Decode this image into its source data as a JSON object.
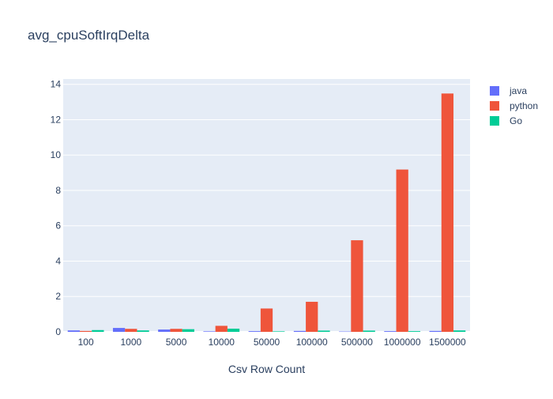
{
  "chart_data": {
    "type": "bar",
    "title": "avg_cpuSoftIrqDelta",
    "xlabel": "Csv Row Count",
    "ylabel": "",
    "categories": [
      "100",
      "1000",
      "5000",
      "10000",
      "50000",
      "100000",
      "500000",
      "1000000",
      "1500000"
    ],
    "series": [
      {
        "name": "java",
        "color": "#636efa",
        "values": [
          0.08,
          0.22,
          0.13,
          0.03,
          0.04,
          0.05,
          0.02,
          0.04,
          0.05
        ]
      },
      {
        "name": "python",
        "color": "#ef553b",
        "values": [
          0.05,
          0.17,
          0.17,
          0.34,
          1.32,
          1.7,
          5.18,
          9.18,
          13.48
        ]
      },
      {
        "name": "Go",
        "color": "#00cc96",
        "values": [
          0.1,
          0.08,
          0.15,
          0.18,
          0.03,
          0.07,
          0.07,
          0.04,
          0.08
        ]
      }
    ],
    "ylim": [
      0,
      14.3
    ],
    "yticks": [
      0,
      2,
      4,
      6,
      8,
      10,
      12,
      14
    ],
    "grid": true,
    "legend_position": "top-right",
    "plot_bgcolor": "#e5ecf6",
    "barmode": "group"
  }
}
